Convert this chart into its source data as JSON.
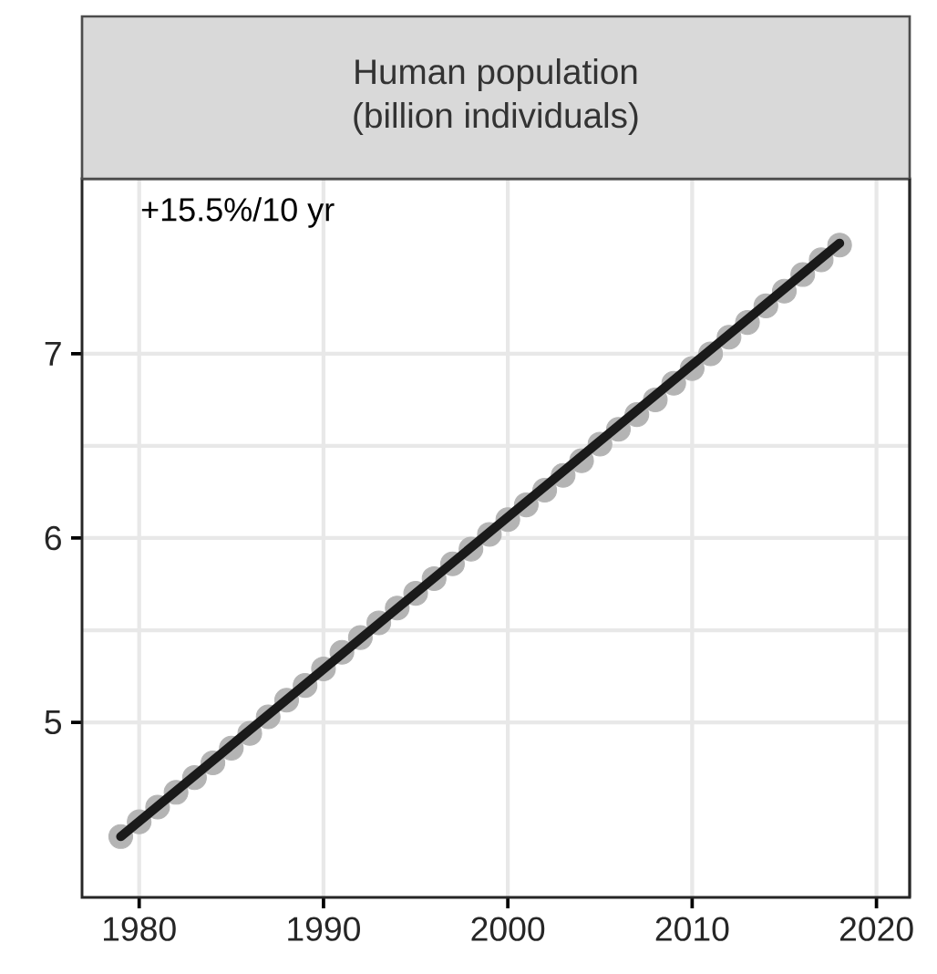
{
  "chart_data": {
    "type": "scatter",
    "title": "Human population",
    "subtitle": "(billion individuals)",
    "annotations": [
      "+15.5%/10 yr"
    ],
    "x": [
      1979,
      1980,
      1981,
      1982,
      1983,
      1984,
      1985,
      1986,
      1987,
      1988,
      1989,
      1990,
      1991,
      1992,
      1993,
      1994,
      1995,
      1996,
      1997,
      1998,
      1999,
      2000,
      2001,
      2002,
      2003,
      2004,
      2005,
      2006,
      2007,
      2008,
      2009,
      2010,
      2011,
      2012,
      2013,
      2014,
      2015,
      2016,
      2017,
      2018
    ],
    "series": [
      {
        "color": "#b4b4b4",
        "marker": "circle",
        "values": [
          4.38,
          4.46,
          4.54,
          4.62,
          4.7,
          4.78,
          4.86,
          4.94,
          5.03,
          5.12,
          5.2,
          5.29,
          5.38,
          5.46,
          5.54,
          5.62,
          5.7,
          5.78,
          5.86,
          5.94,
          6.02,
          6.1,
          6.18,
          6.26,
          6.34,
          6.42,
          6.51,
          6.59,
          6.67,
          6.75,
          6.84,
          6.92,
          7.0,
          7.09,
          7.17,
          7.26,
          7.34,
          7.43,
          7.51,
          7.59
        ]
      },
      {
        "type": "line",
        "color": "#1a1a1a",
        "line_style": "solid",
        "marker": "none",
        "x": [
          1979,
          2018
        ],
        "values": [
          4.38,
          7.6
        ]
      }
    ],
    "xlim": [
      1976.9,
      2021.8
    ],
    "ylim": [
      4.05,
      7.95
    ],
    "xticks": [
      1980,
      1990,
      2000,
      2010,
      2020
    ],
    "yticks": [
      5,
      6,
      7
    ],
    "grid": true
  }
}
